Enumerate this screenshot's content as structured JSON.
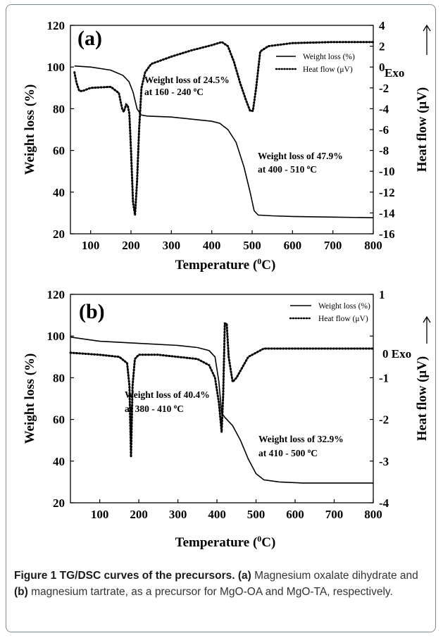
{
  "chart_data": [
    {
      "type": "line",
      "panel_label": "(a)",
      "xlabel": "Temperature (⁰C)",
      "xlabel_main": "Temperature (",
      "xlabel_sup": "0",
      "xlabel_end": "C)",
      "ylabel": "Weight loss (%)",
      "y2label": "Heat flow (μV)",
      "exo_label": "Exo",
      "xlim": [
        50,
        800
      ],
      "ylim": [
        20,
        120
      ],
      "y2lim": [
        -16,
        4
      ],
      "xticks": [
        "100",
        "200",
        "300",
        "400",
        "500",
        "600",
        "700",
        "800"
      ],
      "yticks": [
        "20",
        "40",
        "60",
        "80",
        "100",
        "120"
      ],
      "y2ticks": [
        "4",
        "2",
        "0",
        "-2",
        "-4",
        "-6",
        "-8",
        "-10",
        "-12",
        "-14",
        "-16"
      ],
      "legend_placement": "top-right",
      "series": [
        {
          "name": "Weight loss (%)",
          "axis": "left",
          "style": "solid",
          "x": [
            60,
            100,
            150,
            180,
            195,
            205,
            215,
            225,
            240,
            300,
            350,
            400,
            420,
            440,
            460,
            480,
            495,
            505,
            515,
            550,
            600,
            700,
            800
          ],
          "y": [
            100.5,
            100,
            98.5,
            96,
            93,
            88,
            80,
            77,
            76.5,
            76,
            75,
            74,
            73,
            70,
            64,
            52,
            40,
            31,
            29,
            28.6,
            28.3,
            28,
            27.7
          ]
        },
        {
          "name": "Heat flow (μV)",
          "axis": "right",
          "style": "dotted",
          "x": [
            60,
            65,
            72,
            80,
            100,
            150,
            170,
            178,
            182,
            188,
            192,
            196,
            200,
            205,
            210,
            215,
            220,
            226,
            235,
            250,
            300,
            350,
            400,
            425,
            440,
            455,
            470,
            485,
            495,
            502,
            510,
            520,
            540,
            560,
            600,
            700,
            800
          ],
          "y": [
            -0.5,
            -1.5,
            -2.3,
            -2.3,
            -2.0,
            -1.9,
            -2.5,
            -4.0,
            -4.3,
            -3.6,
            -3.7,
            -4.5,
            -8.0,
            -13.0,
            -14.2,
            -11.0,
            -6.0,
            -2.0,
            -0.5,
            0.3,
            1.0,
            1.6,
            2.1,
            2.4,
            2.0,
            0.5,
            -1.5,
            -3.2,
            -4.2,
            -4.2,
            -2.0,
            1.5,
            2.0,
            2.1,
            2.3,
            2.4,
            2.4
          ]
        }
      ],
      "annotations": [
        {
          "line1": "Weight loss of 24.5%",
          "line2_main": "at 160 - 240 ",
          "line2_sup": "o",
          "line2_end": "C"
        },
        {
          "line1": "Weight loss of 47.9%",
          "line2_main": "at 400 - 510 ",
          "line2_sup": "o",
          "line2_end": "C"
        }
      ]
    },
    {
      "type": "line",
      "panel_label": "(b)",
      "xlabel": "Temperature (⁰C)",
      "xlabel_main": "Temperature (",
      "xlabel_sup": "0",
      "xlabel_end": "C)",
      "ylabel": "Weight loss (%)",
      "y2label": "Heat flow (μV)",
      "exo_label": "0 Exo",
      "xlim": [
        25,
        800
      ],
      "ylim": [
        20,
        120
      ],
      "y2lim": [
        -4,
        1
      ],
      "xticks": [
        "100",
        "200",
        "300",
        "400",
        "500",
        "600",
        "700",
        "800"
      ],
      "yticks": [
        "20",
        "40",
        "60",
        "80",
        "100",
        "120"
      ],
      "y2ticks": [
        "1",
        "",
        "-1",
        "-2",
        "-3",
        "-4"
      ],
      "legend_placement": "top-right",
      "series": [
        {
          "name": "Weight loss (%)",
          "axis": "left",
          "style": "solid",
          "x": [
            25,
            100,
            200,
            300,
            350,
            380,
            395,
            405,
            412,
            420,
            440,
            460,
            480,
            500,
            520,
            560,
            620,
            700,
            800
          ],
          "y": [
            99.5,
            97.5,
            96.5,
            95.5,
            94.5,
            93,
            90,
            78,
            63,
            61,
            57,
            50,
            41,
            34,
            31,
            30,
            29.5,
            29.5,
            29.5
          ]
        },
        {
          "name": "Heat flow (μV)",
          "axis": "right",
          "style": "dotted",
          "x": [
            25,
            100,
            150,
            170,
            176,
            180,
            184,
            190,
            200,
            250,
            300,
            350,
            380,
            395,
            405,
            412,
            416,
            420,
            425,
            430,
            440,
            450,
            480,
            520,
            560,
            600,
            700,
            800
          ],
          "y": [
            -0.4,
            -0.45,
            -0.5,
            -0.65,
            -1.2,
            -2.9,
            -1.2,
            -0.55,
            -0.45,
            -0.45,
            -0.5,
            -0.55,
            -0.7,
            -1.0,
            -1.6,
            -2.3,
            -1.4,
            0.3,
            0.3,
            -0.5,
            -1.1,
            -1.0,
            -0.5,
            -0.3,
            -0.3,
            -0.3,
            -0.3,
            -0.3
          ]
        }
      ],
      "annotations": [
        {
          "line1": "Weight loss of 40.4%",
          "line2_main": "at 380 - 410 ",
          "line2_sup": "o",
          "line2_end": "C"
        },
        {
          "line1": "Weight loss of 32.9%",
          "line2_main": "at 410 - 500 ",
          "line2_sup": "o",
          "line2_end": "C"
        }
      ]
    }
  ],
  "caption": {
    "figure_label": "Figure 1",
    "title": "TG/DSC curves of the precursors.",
    "a_label": "(a)",
    "a_text": "Magnesium oxalate dihydrate and",
    "b_label": "(b)",
    "b_text": "magnesium tartrate, as a precursor for MgO-OA and MgO-TA, respectively."
  },
  "colors": {
    "frame": "#7a8f9e",
    "ink": "#000000",
    "caption_text": "#333333"
  }
}
